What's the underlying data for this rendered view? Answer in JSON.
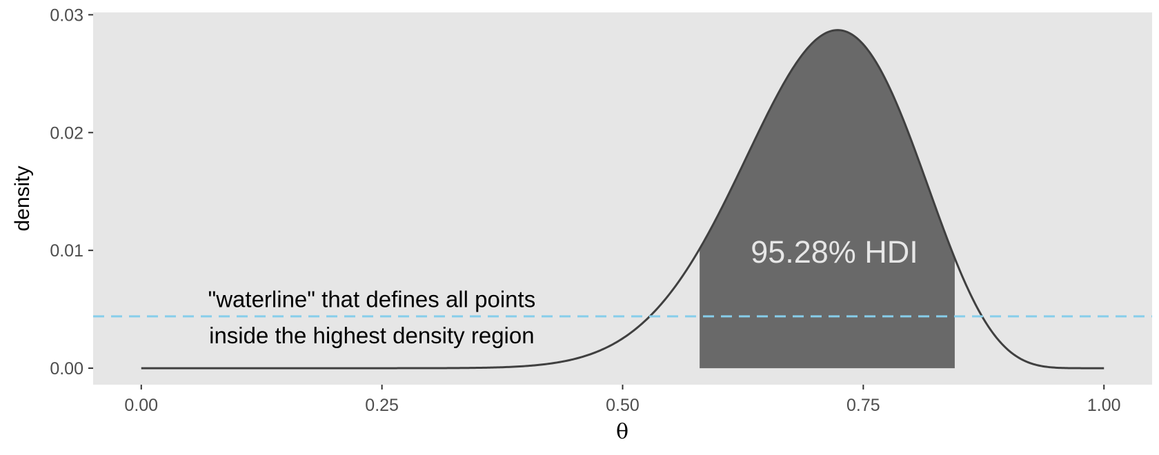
{
  "chart_data": {
    "type": "area",
    "xlabel": "θ",
    "ylabel": "density",
    "xlim": [
      -0.05,
      1.05
    ],
    "ylim": [
      -0.0014,
      0.0302
    ],
    "x_ticks": [
      {
        "value": 0.0,
        "label": "0.00"
      },
      {
        "value": 0.25,
        "label": "0.25"
      },
      {
        "value": 0.5,
        "label": "0.50"
      },
      {
        "value": 0.75,
        "label": "0.75"
      },
      {
        "value": 1.0,
        "label": "1.00"
      }
    ],
    "y_ticks": [
      {
        "value": 0.0,
        "label": "0.00"
      },
      {
        "value": 0.01,
        "label": "0.01"
      },
      {
        "value": 0.02,
        "label": "0.02"
      },
      {
        "value": 0.03,
        "label": "0.03"
      }
    ],
    "grid": false,
    "density_curve": {
      "distribution": "beta",
      "alpha": 18,
      "beta": 7.5,
      "peak_density": 0.0287,
      "x_range": [
        0.0,
        1.0
      ],
      "line_color": "#404040"
    },
    "hdi": {
      "lower": 0.58,
      "upper": 0.845,
      "fill_color": "#696969",
      "label": "95.28% HDI",
      "label_x": 0.72,
      "label_y": 0.0099
    },
    "waterline": {
      "y": 0.0044,
      "color": "#87ceeb",
      "style": "dashed"
    },
    "annotation": {
      "lines": [
        "\"waterline\" that defines all points",
        "inside the highest density region"
      ],
      "x": 0.2,
      "y_line1": 0.0059,
      "y_line2": 0.0028
    },
    "panel_background": "#e6e6e6"
  }
}
